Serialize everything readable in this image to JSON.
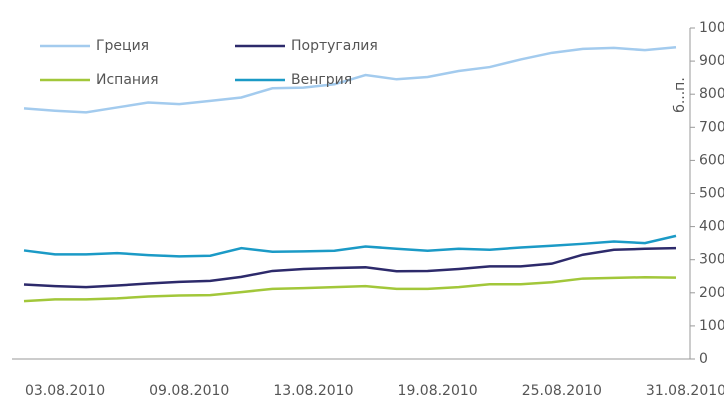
{
  "chart_data": {
    "type": "line",
    "categories": [
      null,
      "03.08.2010",
      null,
      null,
      null,
      "09.08.2010",
      null,
      null,
      null,
      "13.08.2010",
      null,
      null,
      null,
      "19.08.2010",
      null,
      null,
      null,
      "25.08.2010",
      null,
      null,
      null,
      "31.08.2010"
    ],
    "y_label": "б...п.",
    "ylim": [
      0,
      1000
    ],
    "yticks": [
      0,
      100,
      200,
      300,
      400,
      500,
      600,
      700,
      800,
      900,
      1000
    ],
    "legend": "top-left",
    "series": [
      {
        "name": "Греция",
        "color": "#a3cbee",
        "values": [
          757,
          750,
          745,
          760,
          775,
          770,
          780,
          790,
          818,
          820,
          830,
          858,
          845,
          852,
          870,
          882,
          905,
          925,
          937,
          940,
          933,
          942
        ]
      },
      {
        "name": "Португалия",
        "color": "#2d2a6b",
        "values": [
          225,
          220,
          217,
          222,
          228,
          233,
          236,
          248,
          266,
          272,
          275,
          277,
          265,
          266,
          272,
          280,
          280,
          288,
          315,
          330,
          333,
          335
        ]
      },
      {
        "name": "Испания",
        "color": "#a2c73a",
        "values": [
          175,
          180,
          180,
          183,
          189,
          192,
          193,
          202,
          212,
          214,
          217,
          220,
          212,
          212,
          217,
          226,
          226,
          232,
          243,
          245,
          247,
          246
        ]
      },
      {
        "name": "Венгрия",
        "color": "#1b9ac6",
        "values": [
          328,
          316,
          316,
          320,
          314,
          310,
          312,
          335,
          324,
          325,
          327,
          340,
          333,
          327,
          333,
          330,
          337,
          342,
          348,
          355,
          350,
          372
        ]
      }
    ]
  }
}
